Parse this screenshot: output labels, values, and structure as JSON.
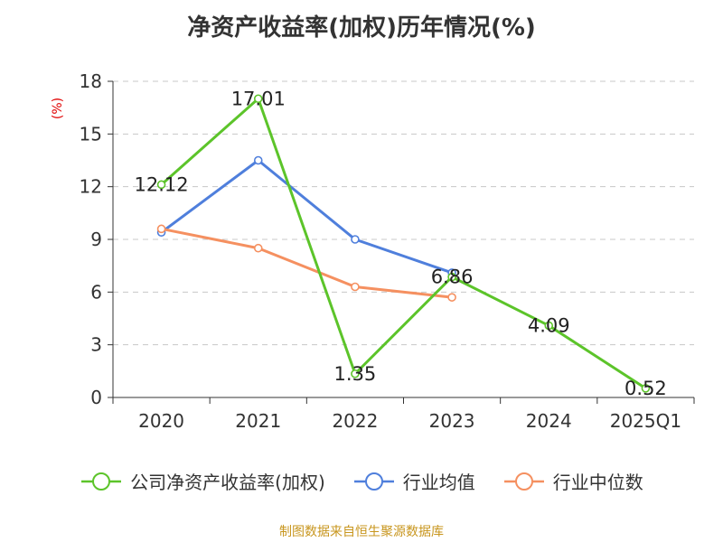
{
  "chart_data": {
    "type": "line",
    "title": "净资产收益率(加权)历年情况(%)",
    "ylabel": "(%)",
    "categories": [
      "2020",
      "2021",
      "2022",
      "2023",
      "2024",
      "2025Q1"
    ],
    "ylim": [
      0,
      18
    ],
    "yticks": [
      0,
      3,
      6,
      9,
      12,
      15,
      18
    ],
    "grid": true,
    "legend_position": "bottom",
    "series": [
      {
        "name": "公司净资产收益率(加权)",
        "color": "#5cc42a",
        "values": [
          12.12,
          17.01,
          1.35,
          6.86,
          4.09,
          0.52
        ],
        "labeled": true
      },
      {
        "name": "行业均值",
        "color": "#4f7fdc",
        "values": [
          9.4,
          13.5,
          9.0,
          7.1,
          null,
          null
        ],
        "labeled": false
      },
      {
        "name": "行业中位数",
        "color": "#f59060",
        "values": [
          9.6,
          8.5,
          6.3,
          5.7,
          null,
          null
        ],
        "labeled": false
      }
    ]
  },
  "source_text": "制图数据来自恒生聚源数据库"
}
